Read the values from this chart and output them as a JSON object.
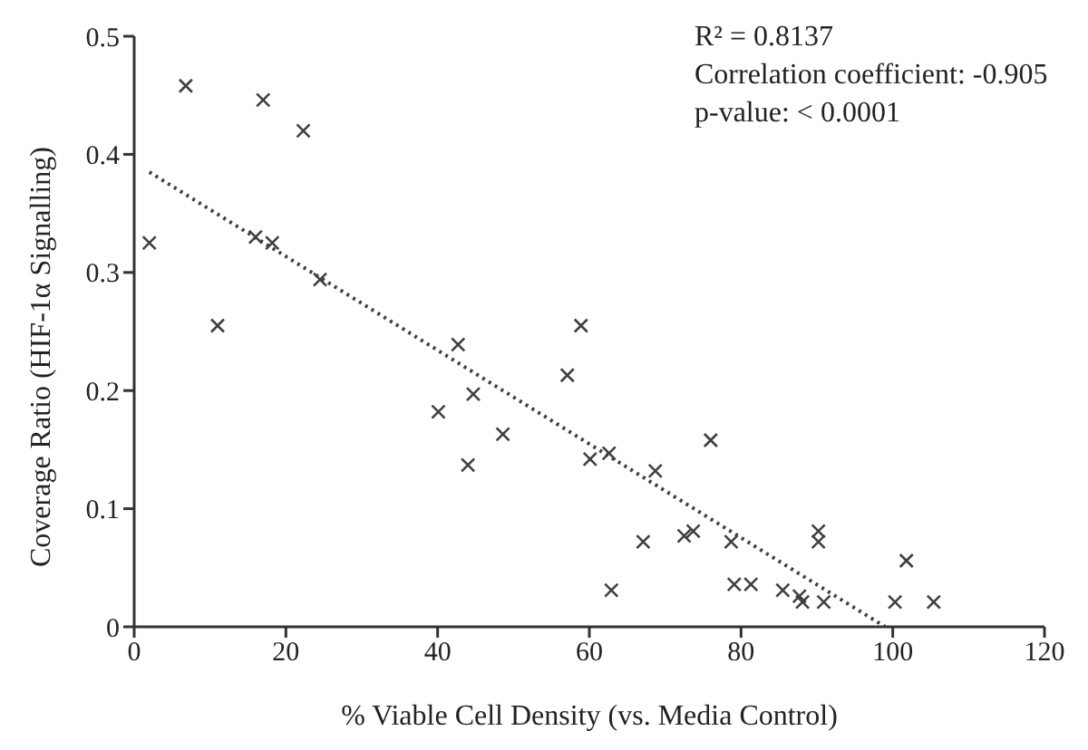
{
  "chart_data": {
    "type": "scatter",
    "xlabel": "% Viable Cell Density (vs. Media Control)",
    "ylabel": "Coverage Ratio (HIF-1α Signalling)",
    "annotations": [
      "R² = 0.8137",
      "Correlation coefficient: -0.905",
      "p-value: < 0.0001"
    ],
    "xlim": [
      0,
      120
    ],
    "xticks": [
      0,
      20,
      40,
      60,
      80,
      100,
      120
    ],
    "ylim": [
      0,
      0.5
    ],
    "yticks": [
      0,
      0.1,
      0.2,
      0.3,
      0.4,
      0.5
    ],
    "grid": false,
    "legend": false,
    "marker": "cross",
    "series": [
      {
        "color": "#404040",
        "x": [
          2.0,
          6.8,
          17.0,
          22.3,
          16.0,
          18.2,
          24.5,
          11.0,
          42.7,
          58.9,
          57.1,
          40.1,
          44.7,
          44.0,
          48.6,
          60.1,
          62.6,
          68.7,
          76.0,
          62.9,
          67.1,
          72.5,
          73.7,
          78.7,
          79.1,
          81.3,
          85.5,
          87.7,
          88.1,
          90.2,
          90.2,
          90.9,
          100.3,
          101.8,
          105.4
        ],
        "values": [
          0.325,
          0.458,
          0.446,
          0.42,
          0.33,
          0.325,
          0.294,
          0.255,
          0.239,
          0.255,
          0.213,
          0.182,
          0.197,
          0.137,
          0.163,
          0.142,
          0.147,
          0.132,
          0.158,
          0.031,
          0.072,
          0.077,
          0.081,
          0.072,
          0.036,
          0.036,
          0.031,
          0.026,
          0.021,
          0.081,
          0.072,
          0.021,
          0.021,
          0.056,
          0.021
        ]
      },
      {
        "type": "line",
        "color": "#404040",
        "line_style": "dotted",
        "marker": "none",
        "x": [
          2,
          99
        ],
        "values": [
          0.385,
          0
        ]
      }
    ]
  }
}
